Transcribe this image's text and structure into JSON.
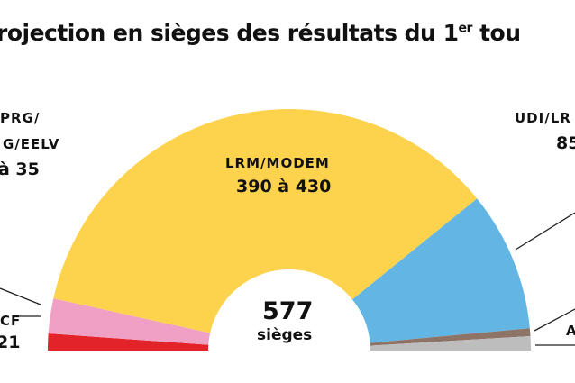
{
  "title": {
    "text": "rojection en sièges des résultats du 1",
    "sup": "er",
    "tail": " tou"
  },
  "chart_data": {
    "type": "pie",
    "shape": "hemicycle",
    "total_seats": 577,
    "center_label": {
      "value": "577",
      "unit": "sièges"
    },
    "segments": [
      {
        "name": "PCF",
        "seats": 13,
        "color": "#E2232A",
        "label_lines": [
          "CF"
        ],
        "range": "21"
      },
      {
        "name": "PRG/G/EELV",
        "seats": 27,
        "color": "#F0A0C4",
        "label_lines": [
          "PRG/",
          "G/EELV"
        ],
        "range": "à 35"
      },
      {
        "name": "LRM/MODEM",
        "seats": 412,
        "color": "#FDD34E",
        "label_lines": [
          "LRM/MODEM"
        ],
        "range": "390 à 430"
      },
      {
        "name": "UDI/LR",
        "seats": 108,
        "color": "#63B6E4",
        "label_lines": [
          "UDI/LR"
        ],
        "range": "85"
      },
      {
        "name": "",
        "seats": 6,
        "color": "#8D7466",
        "label_lines": [],
        "range": ""
      },
      {
        "name": "A",
        "seats": 11,
        "color": "#BDBDBD",
        "label_lines": [
          "A"
        ],
        "range": ""
      }
    ]
  }
}
